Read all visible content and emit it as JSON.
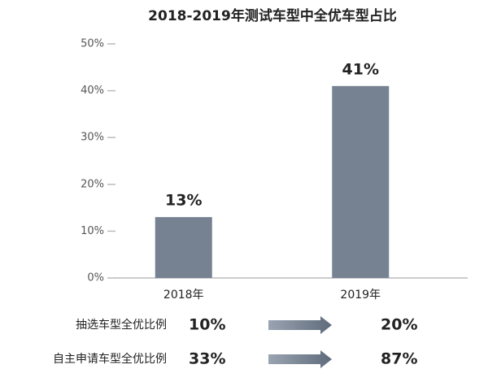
{
  "chart_data": {
    "type": "bar",
    "title": "2018-2019年测试车型中全优车型占比",
    "categories": [
      "2018年",
      "2019年"
    ],
    "values": [
      13,
      41
    ],
    "value_labels": [
      "13%",
      "41%"
    ],
    "color": "#768291",
    "ylim": [
      0,
      50
    ],
    "yticks": [
      {
        "value": 0,
        "label": "0%"
      },
      {
        "value": 10,
        "label": "10%"
      },
      {
        "value": 20,
        "label": "20%"
      },
      {
        "value": 30,
        "label": "30%"
      },
      {
        "value": 40,
        "label": "40%"
      },
      {
        "value": 50,
        "label": "50%"
      }
    ]
  },
  "comparison_table": {
    "rows": [
      {
        "label": "抽选车型全优比例",
        "from": "10%",
        "to": "20%"
      },
      {
        "label": "自主申请车型全优比例",
        "from": "33%",
        "to": "87%"
      }
    ]
  }
}
